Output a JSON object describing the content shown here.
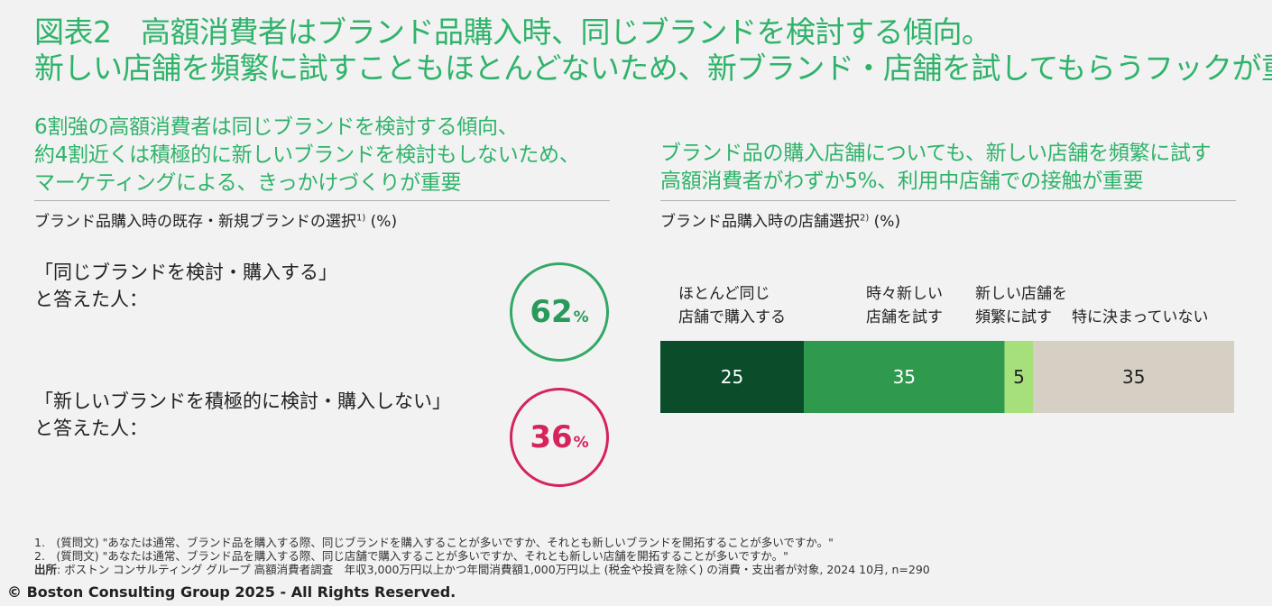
{
  "title": {
    "line1": "図表2　高額消費者はブランド品購入時、同じブランドを検討する傾向。",
    "line2": "新しい店舗を頻繁に試すこともほとんどないため、新ブランド・店舗を試してもらうフックが重要"
  },
  "left": {
    "subhead": [
      "6割強の高額消費者は同じブランドを検討する傾向、",
      "約4割近くは積極的に新しいブランドを検討もしないため、",
      "マーケティングによる、きっかけづくりが重要"
    ],
    "caption": "ブランド品購入時の既存・新規ブランドの選択",
    "caption_sup": "1)",
    "caption_unit": " (%)",
    "item1": {
      "label1": "「同じブランドを検討・購入する」",
      "label2": "と答えた人：",
      "value": "62",
      "unit": "%",
      "color": "#33a867"
    },
    "item2": {
      "label1": "「新しいブランドを積極的に検討・購入しない」",
      "label2": "と答えた人：",
      "value": "36",
      "unit": "%",
      "color": "#d4245a"
    }
  },
  "right": {
    "subhead": [
      "ブランド品の購入店舗についても、新しい店舗を頻繁に試す",
      "高額消費者がわずか5%、利用中店舗での接触が重要"
    ],
    "caption": "ブランド品購入時の店舗選択",
    "caption_sup": "2)",
    "caption_unit": " (%)"
  },
  "chart_data": {
    "type": "bar",
    "orientation": "horizontal-stacked-100",
    "categories": [
      "ほとんど同じ店舗で購入する",
      "時々新しい店舗を試す",
      "新しい店舗を頻繁に試す",
      "特に決まっていない"
    ],
    "category_lines": [
      [
        "ほとんど同じ",
        "店舗で購入する"
      ],
      [
        "時々新しい",
        "店舗を試す"
      ],
      [
        "新しい店舗を",
        "頻繁に試す"
      ],
      [
        "特に決まっていない"
      ]
    ],
    "values": [
      25,
      35,
      5,
      35
    ],
    "colors": [
      "#0b4d2a",
      "#2f9a4e",
      "#a6e07a",
      "#d6d0c4"
    ],
    "label_colors": [
      "#ffffff",
      "#ffffff",
      "#222222",
      "#222222"
    ]
  },
  "footnotes": {
    "n1": "1.　(質問文) \"あなたは通常、ブランド品を購入する際、同じブランドを購入することが多いですか、それとも新しいブランドを開拓することが多いですか。\"",
    "n2": "2.　(質問文) \"あなたは通常、ブランド品を購入する際、同じ店舗で購入することが多いですか、それとも新しい店舗を開拓することが多いですか。\"",
    "source_label": "出所",
    "source_text": ": ボストン コンサルティング グループ 高額消費者調査　年収3,000万円以上かつ年間消費額1,000万円以上 (税金や投資を除く) の消費・支出者が対象, 2024 10月, n=290"
  },
  "copyright": "© Boston Consulting Group 2025 - All Rights Reserved."
}
